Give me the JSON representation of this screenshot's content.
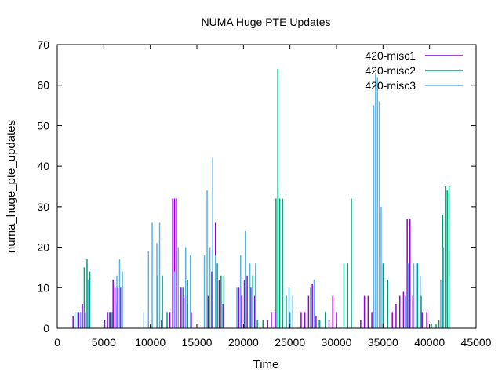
{
  "chart_data": {
    "type": "line",
    "title": "NUMA Huge PTE Updates",
    "xlabel": "Time",
    "ylabel": "numa_huge_pte_updates",
    "xlim": [
      0,
      45000
    ],
    "ylim": [
      0,
      70
    ],
    "x_ticks": [
      "0",
      "5000",
      "10000",
      "15000",
      "20000",
      "25000",
      "30000",
      "35000",
      "40000",
      "45000"
    ],
    "y_ticks": [
      "0",
      "10",
      "20",
      "30",
      "40",
      "50",
      "60",
      "70"
    ],
    "grid": false,
    "legend_position": "top-right",
    "series": [
      {
        "name": "420-misc1",
        "color": "#9400d3",
        "style": "impulses",
        "points": [
          [
            1700,
            3
          ],
          [
            2300,
            4
          ],
          [
            2700,
            6
          ],
          [
            3000,
            4
          ],
          [
            5100,
            2
          ],
          [
            5400,
            4
          ],
          [
            5700,
            4
          ],
          [
            6000,
            12
          ],
          [
            6200,
            10
          ],
          [
            6500,
            10
          ],
          [
            6800,
            10
          ],
          [
            11200,
            2
          ],
          [
            12100,
            4
          ],
          [
            12400,
            32
          ],
          [
            12600,
            32
          ],
          [
            12800,
            32
          ],
          [
            13000,
            10
          ],
          [
            13300,
            10
          ],
          [
            13600,
            8
          ],
          [
            14000,
            6
          ],
          [
            14400,
            4
          ],
          [
            16200,
            8
          ],
          [
            16600,
            14
          ],
          [
            17000,
            26
          ],
          [
            17400,
            12
          ],
          [
            17800,
            6
          ],
          [
            19500,
            10
          ],
          [
            19800,
            8
          ],
          [
            20100,
            12
          ],
          [
            20400,
            13
          ],
          [
            20800,
            10
          ],
          [
            21200,
            8
          ],
          [
            22600,
            2
          ],
          [
            23000,
            4
          ],
          [
            23400,
            4
          ],
          [
            24200,
            2
          ],
          [
            26200,
            4
          ],
          [
            26600,
            4
          ],
          [
            27000,
            8
          ],
          [
            27400,
            11
          ],
          [
            27800,
            3
          ],
          [
            29200,
            2
          ],
          [
            29600,
            8
          ],
          [
            30000,
            4
          ],
          [
            32600,
            2
          ],
          [
            33000,
            8
          ],
          [
            33400,
            8
          ],
          [
            33800,
            4
          ],
          [
            36000,
            4
          ],
          [
            36400,
            6
          ],
          [
            36800,
            8
          ],
          [
            37200,
            9
          ],
          [
            37600,
            27
          ],
          [
            37900,
            27
          ],
          [
            38200,
            8
          ],
          [
            39200,
            4
          ],
          [
            39700,
            4
          ]
        ]
      },
      {
        "name": "420-misc2",
        "color": "#009e73",
        "style": "impulses",
        "points": [
          [
            2900,
            15
          ],
          [
            3200,
            17
          ],
          [
            3500,
            14
          ],
          [
            5600,
            4
          ],
          [
            5900,
            4
          ],
          [
            6400,
            6
          ],
          [
            10800,
            13
          ],
          [
            11300,
            13
          ],
          [
            11800,
            4
          ],
          [
            13500,
            10
          ],
          [
            14000,
            12
          ],
          [
            17200,
            16
          ],
          [
            17600,
            13
          ],
          [
            17900,
            13
          ],
          [
            21000,
            13
          ],
          [
            21500,
            2
          ],
          [
            22100,
            2
          ],
          [
            23500,
            32
          ],
          [
            23700,
            64
          ],
          [
            23900,
            32
          ],
          [
            24200,
            32
          ],
          [
            24600,
            8
          ],
          [
            25000,
            4
          ],
          [
            28200,
            2
          ],
          [
            28800,
            4
          ],
          [
            30800,
            16
          ],
          [
            31200,
            16
          ],
          [
            31600,
            32
          ],
          [
            35000,
            16
          ],
          [
            35500,
            12
          ],
          [
            38700,
            16
          ],
          [
            39100,
            8
          ],
          [
            40200,
            1
          ],
          [
            40700,
            1
          ],
          [
            41000,
            2
          ],
          [
            41400,
            28
          ],
          [
            41700,
            35
          ],
          [
            41900,
            34
          ],
          [
            42100,
            35
          ]
        ]
      },
      {
        "name": "420-misc3",
        "color": "#56b4e9",
        "style": "impulses",
        "points": [
          [
            1900,
            4
          ],
          [
            2200,
            4
          ],
          [
            2500,
            4
          ],
          [
            3300,
            12
          ],
          [
            6400,
            13
          ],
          [
            6700,
            17
          ],
          [
            7000,
            14
          ],
          [
            9300,
            4
          ],
          [
            9800,
            19
          ],
          [
            10200,
            26
          ],
          [
            10700,
            21
          ],
          [
            11000,
            26
          ],
          [
            12600,
            14
          ],
          [
            13000,
            20
          ],
          [
            13800,
            20
          ],
          [
            14300,
            18
          ],
          [
            15800,
            18
          ],
          [
            16100,
            34
          ],
          [
            16400,
            20
          ],
          [
            16700,
            42
          ],
          [
            17000,
            18
          ],
          [
            19300,
            10
          ],
          [
            19700,
            18
          ],
          [
            20200,
            24
          ],
          [
            20700,
            16
          ],
          [
            21300,
            16
          ],
          [
            24900,
            10
          ],
          [
            25300,
            8
          ],
          [
            27200,
            10
          ],
          [
            27600,
            12
          ],
          [
            28100,
            2
          ],
          [
            34000,
            55
          ],
          [
            34200,
            63
          ],
          [
            34400,
            62
          ],
          [
            34600,
            56
          ],
          [
            34800,
            30
          ],
          [
            37400,
            8
          ],
          [
            37700,
            16
          ],
          [
            38300,
            16
          ],
          [
            38600,
            16
          ],
          [
            39000,
            13
          ],
          [
            41200,
            12
          ],
          [
            41500,
            20
          ]
        ]
      }
    ]
  }
}
